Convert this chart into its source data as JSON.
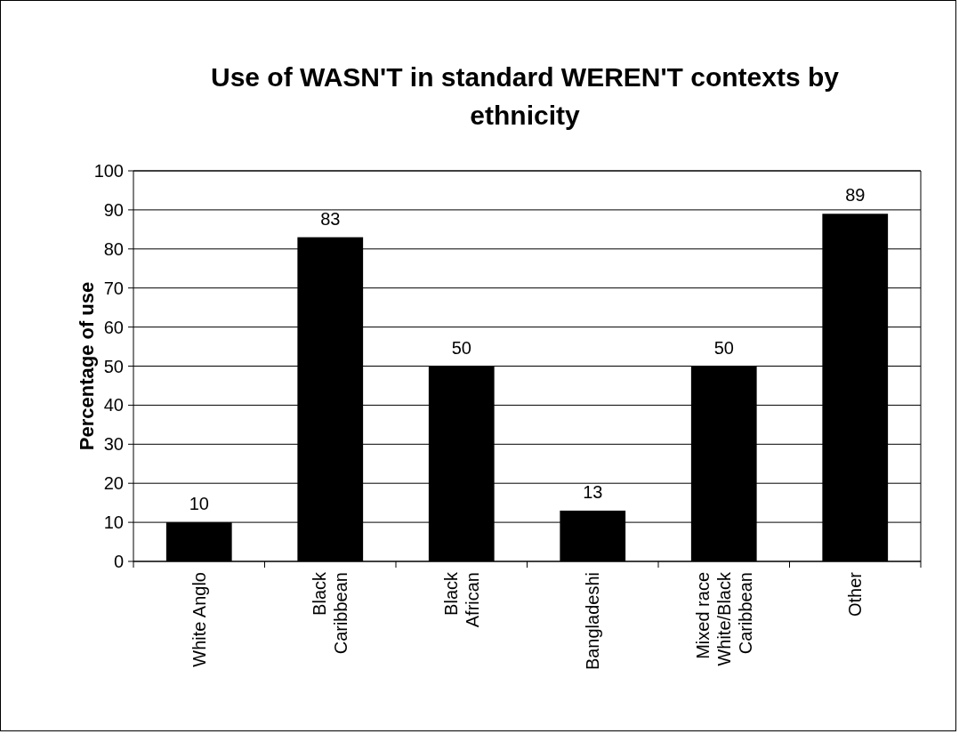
{
  "chart_data": {
    "type": "bar",
    "title": "Use of WASN'T in standard WEREN'T contexts by ethnicity",
    "ylabel": "Percentage of use",
    "categories": [
      "White Anglo",
      "Black Caribbean",
      "Black African",
      "Bangladeshi",
      "Mixed race White/Black Caribbean",
      "Other"
    ],
    "values": [
      10,
      83,
      50,
      13,
      50,
      89
    ],
    "color": "#000000",
    "ylim": [
      0,
      100
    ],
    "yticks": [
      0,
      10,
      20,
      30,
      40,
      50,
      60,
      70,
      80,
      90,
      100
    ],
    "grid": "y",
    "data_labels": true
  }
}
